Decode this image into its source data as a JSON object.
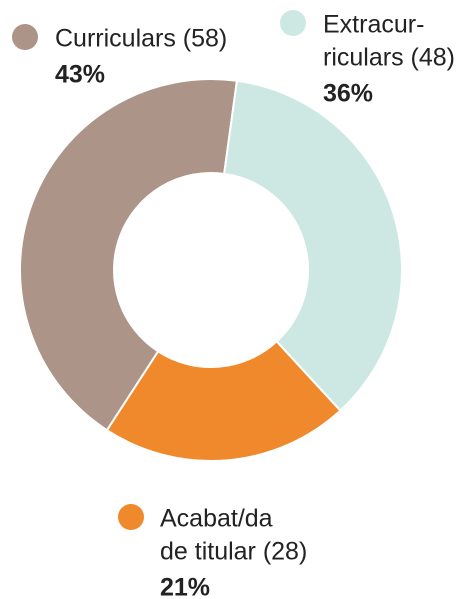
{
  "chart_data": {
    "type": "donut",
    "categories": [
      [
        "Curriculars (58)"
      ],
      [
        "Extracur-",
        "riculars (48)"
      ],
      [
        "Acabat/da",
        "de titular (28)"
      ]
    ],
    "values": [
      43,
      36,
      21
    ],
    "value_labels": [
      "43%",
      "36%",
      "21%"
    ],
    "colors": [
      "#ad9488",
      "#cde8e2",
      "#f0892c"
    ]
  }
}
